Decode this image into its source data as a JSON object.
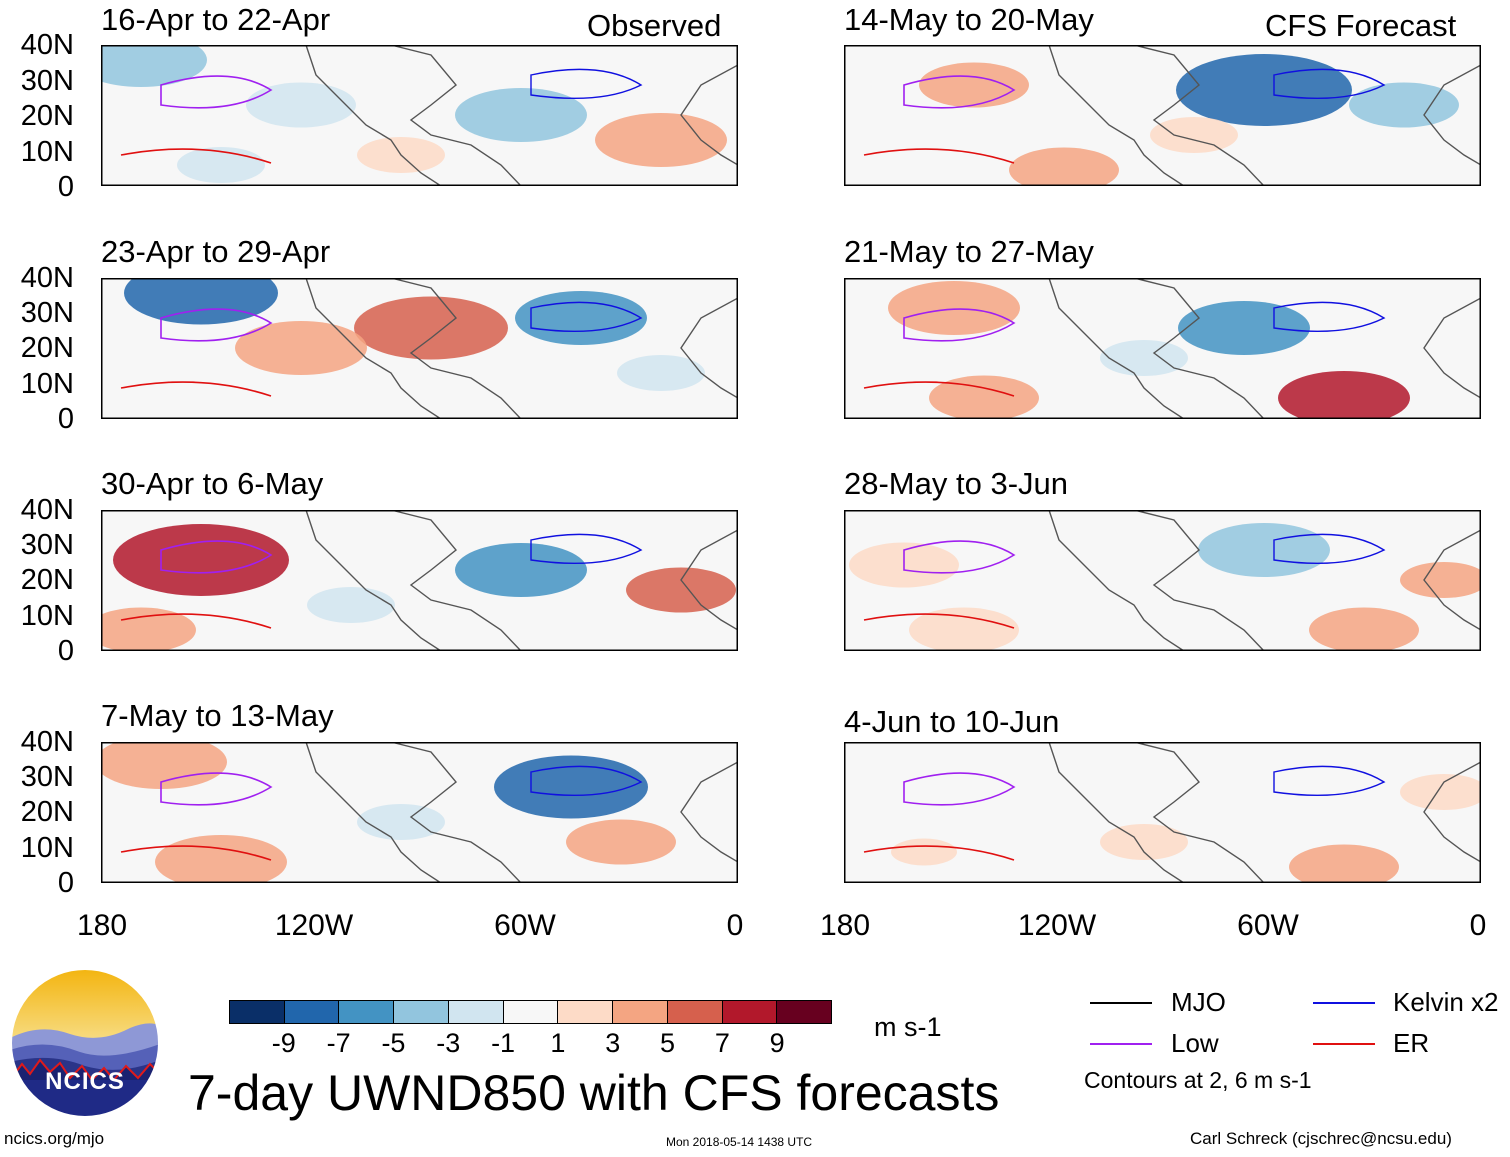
{
  "column_labels": {
    "left": "Observed",
    "right": "CFS Forecast"
  },
  "panels": [
    {
      "title": "16-Apr to 22-Apr",
      "kind": "observed"
    },
    {
      "title": "23-Apr to 29-Apr",
      "kind": "observed"
    },
    {
      "title": "30-Apr to 6-May",
      "kind": "observed"
    },
    {
      "title": "7-May to 13-May",
      "kind": "observed"
    },
    {
      "title": "14-May to 20-May",
      "kind": "forecast"
    },
    {
      "title": "21-May to 27-May",
      "kind": "forecast"
    },
    {
      "title": "28-May to 3-Jun",
      "kind": "forecast"
    },
    {
      "title": "4-Jun to 10-Jun",
      "kind": "forecast"
    }
  ],
  "lat_labels": [
    "40N",
    "30N",
    "20N",
    "10N",
    "0"
  ],
  "lon_labels": [
    "180",
    "120W",
    "60W",
    "0"
  ],
  "colorbar": {
    "colors": [
      "#0a2f68",
      "#2166ac",
      "#4393c3",
      "#92c5de",
      "#d1e5f0",
      "#f7f7f7",
      "#fddbc7",
      "#f4a582",
      "#d6604d",
      "#b2182b",
      "#67001f"
    ],
    "labels": [
      "-9",
      "-7",
      "-5",
      "-3",
      "-1",
      "1",
      "3",
      "5",
      "7",
      "9"
    ],
    "units": "m s-1"
  },
  "legend": {
    "items": [
      {
        "label": "MJO",
        "color": "#000000"
      },
      {
        "label": "Kelvin x2",
        "color": "#1010e0"
      },
      {
        "label": "Low",
        "color": "#a020f0"
      },
      {
        "label": "ER",
        "color": "#e01010"
      }
    ],
    "note": "Contours at 2, 6 m s-1"
  },
  "logo": {
    "text": "NCICS"
  },
  "main_title": "7-day UWND850 with CFS forecasts",
  "footer": {
    "left": "ncics.org/mjo",
    "center": "Mon 2018-05-14 1438 UTC",
    "right": "Carl Schreck (cjschrec@ncsu.edu)"
  }
}
